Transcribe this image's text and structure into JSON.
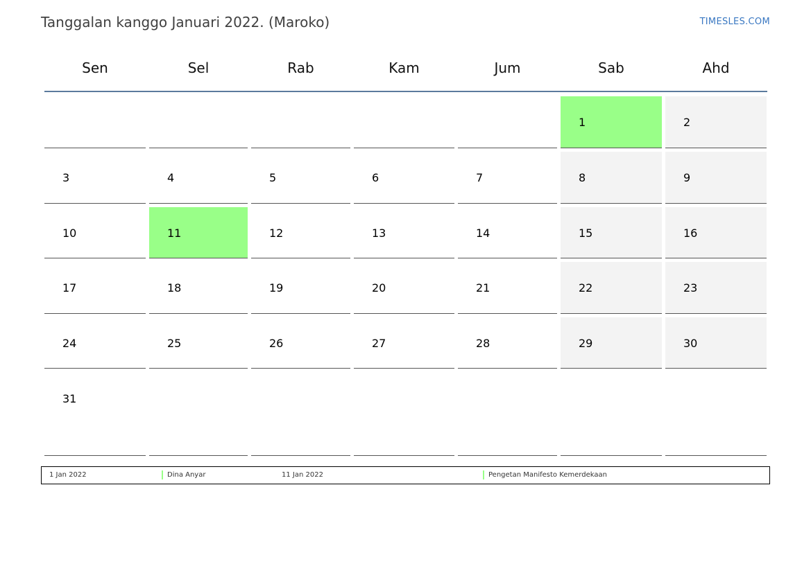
{
  "header": {
    "title": "Tanggalan kanggo Januari 2022. (Maroko)",
    "brand": "TIMESLES.COM"
  },
  "calendar": {
    "weekdays": [
      "Sen",
      "Sel",
      "Rab",
      "Kam",
      "Jum",
      "Sab",
      "Ahd"
    ],
    "weeks": [
      [
        "",
        "",
        "",
        "",
        "",
        "1",
        "2"
      ],
      [
        "3",
        "4",
        "5",
        "6",
        "7",
        "8",
        "9"
      ],
      [
        "10",
        "11",
        "12",
        "13",
        "14",
        "15",
        "16"
      ],
      [
        "17",
        "18",
        "19",
        "20",
        "21",
        "22",
        "23"
      ],
      [
        "24",
        "25",
        "26",
        "27",
        "28",
        "29",
        "30"
      ],
      [
        "31",
        "",
        "",
        "",
        "",
        "",
        ""
      ]
    ],
    "holidays": [
      "1",
      "11"
    ],
    "colors": {
      "holiday": "#99ff88",
      "weekend": "#f3f3f3",
      "header_rule": "#5b7a9d",
      "brand": "#3a78c2"
    }
  },
  "legend": {
    "items": [
      {
        "date": "1 Jan 2022",
        "name": "Dina Anyar"
      },
      {
        "date": "11 Jan 2022",
        "name": "Pengetan Manifesto Kemerdekaan"
      }
    ]
  }
}
